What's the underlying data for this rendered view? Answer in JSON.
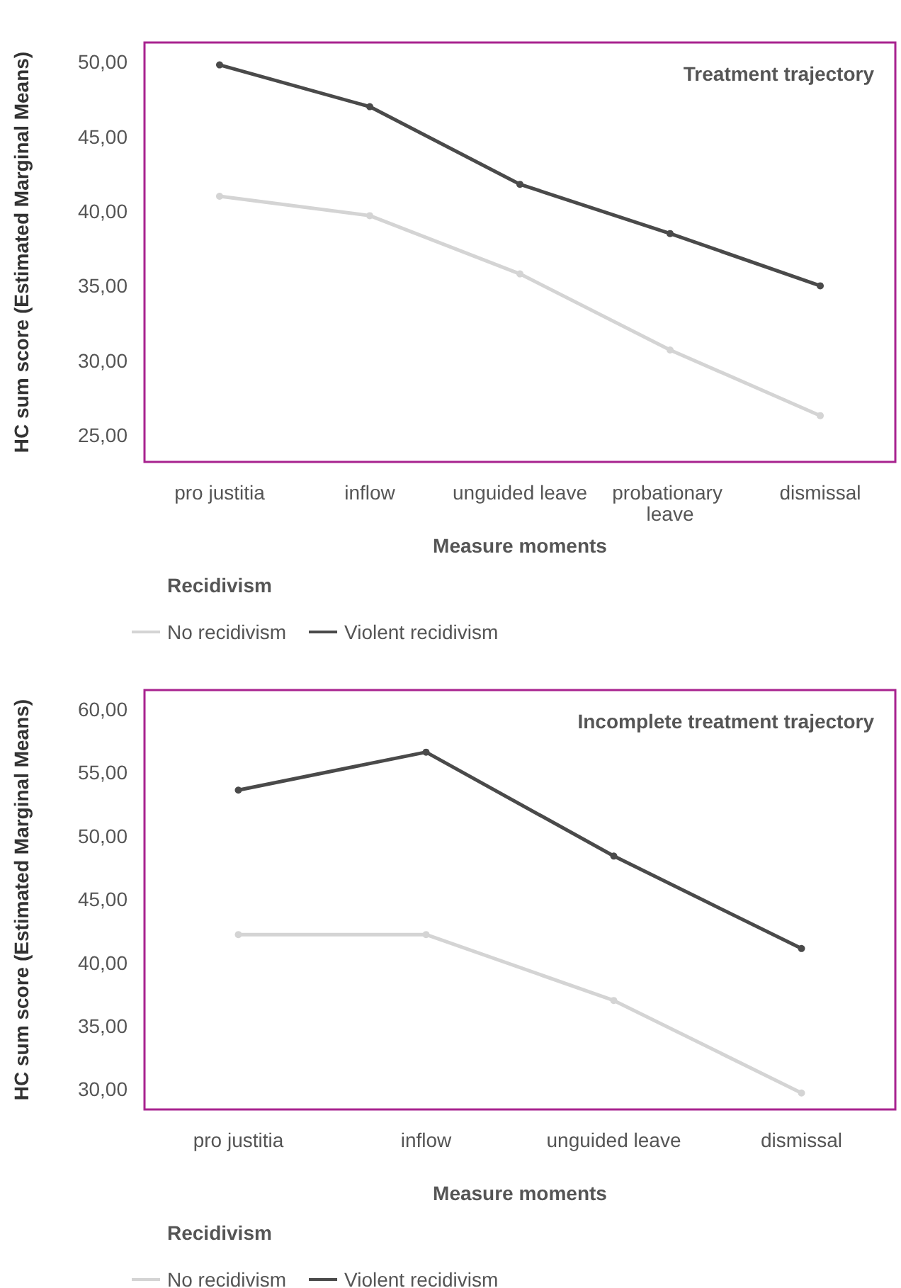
{
  "chart_data": [
    {
      "type": "line",
      "title": "Treatment trajectory",
      "xlabel": "Measure moments",
      "ylabel": "HC sum score (Estimated Marginal Means)",
      "legend_title": "Recidivism",
      "legend": "bottom",
      "marker": "circle",
      "grid": false,
      "categories": [
        "pro justitia",
        "inflow",
        "unguided leave",
        "probationary leave",
        "dismissal"
      ],
      "series": [
        {
          "name": "No recidivism",
          "color": "#d4d4d4",
          "values": [
            41.0,
            39.7,
            35.8,
            30.7,
            26.3
          ]
        },
        {
          "name": "Violent recidivism",
          "color": "#4a4a4a",
          "values": [
            49.8,
            47.0,
            41.8,
            38.5,
            35.0
          ]
        }
      ],
      "ylim": [
        23.2,
        51.3
      ],
      "yticks": [
        {
          "value": 25,
          "label": "25,00"
        },
        {
          "value": 30,
          "label": "30,00"
        },
        {
          "value": 35,
          "label": "35,00"
        },
        {
          "value": 40,
          "label": "40,00"
        },
        {
          "value": 45,
          "label": "45,00"
        },
        {
          "value": 50,
          "label": "50,00"
        }
      ]
    },
    {
      "type": "line",
      "title": "Incomplete treatment trajectory",
      "xlabel": "Measure moments",
      "ylabel": "HC sum score (Estimated Marginal Means)",
      "legend_title": "Recidivism",
      "legend": "bottom",
      "marker": "circle",
      "grid": false,
      "categories": [
        "pro justitia",
        "inflow",
        "unguided leave",
        "dismissal"
      ],
      "series": [
        {
          "name": "No recidivism",
          "color": "#d4d4d4",
          "values": [
            42.2,
            42.2,
            37.0,
            29.7
          ]
        },
        {
          "name": "Violent recidivism",
          "color": "#4a4a4a",
          "values": [
            53.6,
            56.6,
            48.4,
            41.1
          ]
        }
      ],
      "ylim": [
        28.4,
        61.5
      ],
      "yticks": [
        {
          "value": 30,
          "label": "30,00"
        },
        {
          "value": 35,
          "label": "35,00"
        },
        {
          "value": 40,
          "label": "40,00"
        },
        {
          "value": 45,
          "label": "45,00"
        },
        {
          "value": 50,
          "label": "50,00"
        },
        {
          "value": 55,
          "label": "55,00"
        },
        {
          "value": 60,
          "label": "60,00"
        }
      ]
    }
  ]
}
